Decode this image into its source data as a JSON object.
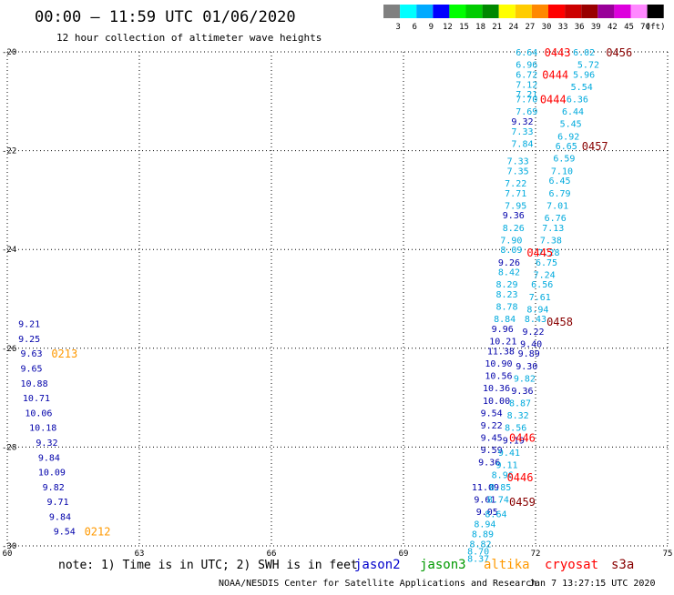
{
  "header": {
    "title": "00:00 – 11:59 UTC 01/06/2020",
    "subtitle": "12 hour collection of altimeter wave heights"
  },
  "colorbar": {
    "unit": "(ft)",
    "bins": [
      {
        "color": "#808080",
        "label": "3"
      },
      {
        "color": "#00ffff",
        "label": "6"
      },
      {
        "color": "#00aaff",
        "label": "9"
      },
      {
        "color": "#0000ff",
        "label": "12"
      },
      {
        "color": "#00ff00",
        "label": "15"
      },
      {
        "color": "#00cc00",
        "label": "18"
      },
      {
        "color": "#008800",
        "label": "21"
      },
      {
        "color": "#ffff00",
        "label": "24"
      },
      {
        "color": "#ffcc00",
        "label": "27"
      },
      {
        "color": "#ff8800",
        "label": "30"
      },
      {
        "color": "#ff0000",
        "label": "33"
      },
      {
        "color": "#cc0000",
        "label": "36"
      },
      {
        "color": "#990000",
        "label": "39"
      },
      {
        "color": "#990099",
        "label": "42"
      },
      {
        "color": "#dd00dd",
        "label": "45"
      },
      {
        "color": "#ff88ff",
        "label": "70"
      },
      {
        "color": "#000000",
        "label": ""
      }
    ]
  },
  "note": "note: 1) Time is in UTC; 2) SWH is in feet",
  "satellites": [
    {
      "name": "jason2",
      "color": "#0000cc"
    },
    {
      "name": "jason3",
      "color": "#009900"
    },
    {
      "name": "altika",
      "color": "#ff9900"
    },
    {
      "name": "cryosat",
      "color": "#ff0000"
    },
    {
      "name": "s3a",
      "color": "#880000"
    }
  ],
  "footer": {
    "credit": "NOAA/NESDIS Center for Satellite Applications and Research",
    "timestamp": "Jan  7 13:27:15 UTC 2020"
  },
  "chart_data": {
    "type": "scatter",
    "xlim": [
      60,
      75
    ],
    "ylim": [
      -30,
      -20
    ],
    "xticks": [
      "60",
      "63",
      "66",
      "69",
      "72",
      "75"
    ],
    "yticks": [
      "-20",
      "-22",
      "-24",
      "-26",
      "-28",
      "-30"
    ],
    "ytick_values": [
      -20,
      -22,
      -24,
      -26,
      -28,
      -30
    ],
    "xtick_values": [
      60,
      63,
      66,
      69,
      72,
      75
    ],
    "grid": true,
    "colors": {
      "light": "#00aadd",
      "dark": "#0000aa",
      "orange": "#ff9900",
      "red": "#ff0000",
      "darkred": "#880000"
    },
    "labels": [
      {
        "x": 71.55,
        "y": -20.0,
        "text": "6.64",
        "c": "light"
      },
      {
        "x": 71.55,
        "y": -20.25,
        "text": "6.96",
        "c": "light"
      },
      {
        "x": 71.55,
        "y": -20.45,
        "text": "6.72",
        "c": "light"
      },
      {
        "x": 71.55,
        "y": -20.65,
        "text": "7.12",
        "c": "light"
      },
      {
        "x": 71.55,
        "y": -20.85,
        "text": "7.21",
        "c": "light"
      },
      {
        "x": 71.55,
        "y": -20.95,
        "text": "7.70",
        "c": "light"
      },
      {
        "x": 71.55,
        "y": -21.2,
        "text": "7.69",
        "c": "light"
      },
      {
        "x": 71.45,
        "y": -21.4,
        "text": "9.32",
        "c": "dark"
      },
      {
        "x": 71.45,
        "y": -21.6,
        "text": "7.33",
        "c": "light"
      },
      {
        "x": 71.45,
        "y": -21.85,
        "text": "7.84",
        "c": "light"
      },
      {
        "x": 71.35,
        "y": -22.2,
        "text": "7.33",
        "c": "light"
      },
      {
        "x": 71.35,
        "y": -22.4,
        "text": "7.35",
        "c": "light"
      },
      {
        "x": 71.3,
        "y": -22.65,
        "text": "7.22",
        "c": "light"
      },
      {
        "x": 71.3,
        "y": -22.85,
        "text": "7.71",
        "c": "light"
      },
      {
        "x": 71.3,
        "y": -23.1,
        "text": "7.95",
        "c": "light"
      },
      {
        "x": 71.25,
        "y": -23.3,
        "text": "9.36",
        "c": "dark"
      },
      {
        "x": 71.25,
        "y": -23.55,
        "text": "8.26",
        "c": "light"
      },
      {
        "x": 71.2,
        "y": -23.8,
        "text": "7.90",
        "c": "light"
      },
      {
        "x": 71.2,
        "y": -24.0,
        "text": "8.09",
        "c": "light"
      },
      {
        "x": 71.15,
        "y": -24.25,
        "text": "9.26",
        "c": "dark"
      },
      {
        "x": 71.15,
        "y": -24.45,
        "text": "8.42",
        "c": "light"
      },
      {
        "x": 71.1,
        "y": -24.7,
        "text": "8.29",
        "c": "light"
      },
      {
        "x": 71.1,
        "y": -24.9,
        "text": "8.23",
        "c": "light"
      },
      {
        "x": 71.1,
        "y": -25.15,
        "text": "8.78",
        "c": "light"
      },
      {
        "x": 71.05,
        "y": -25.4,
        "text": "8.84",
        "c": "light"
      },
      {
        "x": 71.0,
        "y": -25.6,
        "text": "9.96",
        "c": "dark"
      },
      {
        "x": 70.95,
        "y": -25.85,
        "text": "10.21",
        "c": "dark"
      },
      {
        "x": 70.9,
        "y": -26.05,
        "text": "11.38",
        "c": "dark"
      },
      {
        "x": 70.85,
        "y": -26.3,
        "text": "10.90",
        "c": "dark"
      },
      {
        "x": 70.85,
        "y": -26.55,
        "text": "10.56",
        "c": "dark"
      },
      {
        "x": 70.8,
        "y": -26.8,
        "text": "10.36",
        "c": "dark"
      },
      {
        "x": 70.8,
        "y": -27.05,
        "text": "10.00",
        "c": "dark"
      },
      {
        "x": 70.75,
        "y": -27.3,
        "text": "9.54",
        "c": "dark"
      },
      {
        "x": 70.75,
        "y": -27.55,
        "text": "9.22",
        "c": "dark"
      },
      {
        "x": 70.75,
        "y": -27.8,
        "text": "9.45",
        "c": "dark"
      },
      {
        "x": 70.75,
        "y": -28.05,
        "text": "9.59",
        "c": "dark"
      },
      {
        "x": 70.7,
        "y": -28.3,
        "text": "9.36",
        "c": "dark"
      },
      {
        "x": 70.55,
        "y": -28.8,
        "text": "11.09",
        "c": "dark"
      },
      {
        "x": 70.6,
        "y": -29.05,
        "text": "9.61",
        "c": "dark"
      },
      {
        "x": 70.65,
        "y": -29.3,
        "text": "9.05",
        "c": "dark"
      },
      {
        "x": 70.6,
        "y": -29.55,
        "text": "8.94",
        "c": "light"
      },
      {
        "x": 70.55,
        "y": -29.75,
        "text": "8.89",
        "c": "light"
      },
      {
        "x": 70.5,
        "y": -29.95,
        "text": "8.82",
        "c": "light"
      },
      {
        "x": 70.45,
        "y": -30.1,
        "text": "8.70",
        "c": "light"
      },
      {
        "x": 70.45,
        "y": -30.25,
        "text": "8.37",
        "c": "light"
      },
      {
        "x": 72.85,
        "y": -20.0,
        "text": "6.02",
        "c": "light"
      },
      {
        "x": 72.95,
        "y": -20.25,
        "text": "5.72",
        "c": "light"
      },
      {
        "x": 72.85,
        "y": -20.45,
        "text": "5.96",
        "c": "light"
      },
      {
        "x": 72.8,
        "y": -20.7,
        "text": "5.54",
        "c": "light"
      },
      {
        "x": 72.7,
        "y": -20.95,
        "text": "6.36",
        "c": "light"
      },
      {
        "x": 72.6,
        "y": -21.2,
        "text": "6.44",
        "c": "light"
      },
      {
        "x": 72.55,
        "y": -21.45,
        "text": "5.45",
        "c": "light"
      },
      {
        "x": 72.5,
        "y": -21.7,
        "text": "6.92",
        "c": "light"
      },
      {
        "x": 72.45,
        "y": -21.9,
        "text": "6.65",
        "c": "light"
      },
      {
        "x": 72.4,
        "y": -22.15,
        "text": "6.59",
        "c": "light"
      },
      {
        "x": 72.35,
        "y": -22.4,
        "text": "7.10",
        "c": "light"
      },
      {
        "x": 72.3,
        "y": -22.6,
        "text": "6.45",
        "c": "light"
      },
      {
        "x": 72.3,
        "y": -22.85,
        "text": "6.79",
        "c": "light"
      },
      {
        "x": 72.25,
        "y": -23.1,
        "text": "7.01",
        "c": "light"
      },
      {
        "x": 72.2,
        "y": -23.35,
        "text": "6.76",
        "c": "light"
      },
      {
        "x": 72.15,
        "y": -23.55,
        "text": "7.13",
        "c": "light"
      },
      {
        "x": 72.1,
        "y": -23.8,
        "text": "7.38",
        "c": "light"
      },
      {
        "x": 72.05,
        "y": -24.05,
        "text": "7.28",
        "c": "light"
      },
      {
        "x": 72.0,
        "y": -24.25,
        "text": "6.75",
        "c": "light"
      },
      {
        "x": 71.95,
        "y": -24.5,
        "text": "7.24",
        "c": "light"
      },
      {
        "x": 71.9,
        "y": -24.7,
        "text": "6.56",
        "c": "light"
      },
      {
        "x": 71.85,
        "y": -24.95,
        "text": "7.61",
        "c": "light"
      },
      {
        "x": 71.8,
        "y": -25.2,
        "text": "8.94",
        "c": "light"
      },
      {
        "x": 71.75,
        "y": -25.4,
        "text": "8.43",
        "c": "light"
      },
      {
        "x": 71.7,
        "y": -25.65,
        "text": "9.22",
        "c": "dark"
      },
      {
        "x": 71.65,
        "y": -25.9,
        "text": "9.40",
        "c": "dark"
      },
      {
        "x": 71.6,
        "y": -26.1,
        "text": "9.89",
        "c": "dark"
      },
      {
        "x": 71.55,
        "y": -26.35,
        "text": "9.30",
        "c": "dark"
      },
      {
        "x": 71.5,
        "y": -26.6,
        "text": "9.82",
        "c": "light"
      },
      {
        "x": 71.45,
        "y": -26.85,
        "text": "9.36",
        "c": "dark"
      },
      {
        "x": 71.4,
        "y": -27.1,
        "text": "8.87",
        "c": "light"
      },
      {
        "x": 71.35,
        "y": -27.35,
        "text": "8.32",
        "c": "light"
      },
      {
        "x": 71.3,
        "y": -27.6,
        "text": "8.56",
        "c": "light"
      },
      {
        "x": 71.25,
        "y": -27.85,
        "text": "9.19",
        "c": "dark"
      },
      {
        "x": 71.15,
        "y": -28.1,
        "text": "9.41",
        "c": "light"
      },
      {
        "x": 71.1,
        "y": -28.35,
        "text": "9.11",
        "c": "light"
      },
      {
        "x": 71.0,
        "y": -28.55,
        "text": "8.96",
        "c": "light"
      },
      {
        "x": 70.95,
        "y": -28.8,
        "text": "8.85",
        "c": "light"
      },
      {
        "x": 70.9,
        "y": -29.05,
        "text": "8.74",
        "c": "light"
      },
      {
        "x": 70.85,
        "y": -29.35,
        "text": "8.64",
        "c": "light"
      },
      {
        "x": 60.25,
        "y": -25.5,
        "text": "9.21",
        "c": "dark"
      },
      {
        "x": 60.25,
        "y": -25.8,
        "text": "9.25",
        "c": "dark"
      },
      {
        "x": 60.3,
        "y": -26.1,
        "text": "9.63",
        "c": "dark"
      },
      {
        "x": 60.3,
        "y": -26.4,
        "text": "9.65",
        "c": "dark"
      },
      {
        "x": 60.3,
        "y": -26.7,
        "text": "10.88",
        "c": "dark"
      },
      {
        "x": 60.35,
        "y": -27.0,
        "text": "10.71",
        "c": "dark"
      },
      {
        "x": 60.4,
        "y": -27.3,
        "text": "10.06",
        "c": "dark"
      },
      {
        "x": 60.5,
        "y": -27.6,
        "text": "10.18",
        "c": "dark"
      },
      {
        "x": 60.65,
        "y": -27.9,
        "text": "9.32",
        "c": "dark"
      },
      {
        "x": 60.7,
        "y": -28.2,
        "text": "9.84",
        "c": "dark"
      },
      {
        "x": 60.7,
        "y": -28.5,
        "text": "10.09",
        "c": "dark"
      },
      {
        "x": 60.8,
        "y": -28.8,
        "text": "9.82",
        "c": "dark"
      },
      {
        "x": 60.9,
        "y": -29.1,
        "text": "9.71",
        "c": "dark"
      },
      {
        "x": 60.95,
        "y": -29.4,
        "text": "9.84",
        "c": "dark"
      },
      {
        "x": 61.05,
        "y": -29.7,
        "text": "9.54",
        "c": "dark"
      }
    ],
    "passes": [
      {
        "x": 72.2,
        "y": -20.0,
        "text": "0443",
        "c": "red"
      },
      {
        "x": 73.6,
        "y": -20.0,
        "text": "0456",
        "c": "darkred"
      },
      {
        "x": 72.15,
        "y": -20.45,
        "text": "0444",
        "c": "red"
      },
      {
        "x": 72.1,
        "y": -20.95,
        "text": "0444",
        "c": "red"
      },
      {
        "x": 73.05,
        "y": -21.9,
        "text": "0457",
        "c": "darkred"
      },
      {
        "x": 71.8,
        "y": -24.05,
        "text": "0445",
        "c": "red"
      },
      {
        "x": 72.25,
        "y": -25.45,
        "text": "0458",
        "c": "darkred"
      },
      {
        "x": 61.0,
        "y": -26.1,
        "text": "0213",
        "c": "orange"
      },
      {
        "x": 71.4,
        "y": -27.8,
        "text": "0446",
        "c": "red"
      },
      {
        "x": 71.35,
        "y": -28.6,
        "text": "0446",
        "c": "red"
      },
      {
        "x": 71.4,
        "y": -29.1,
        "text": "0459",
        "c": "darkred"
      },
      {
        "x": 61.75,
        "y": -29.7,
        "text": "0212",
        "c": "orange"
      }
    ]
  }
}
